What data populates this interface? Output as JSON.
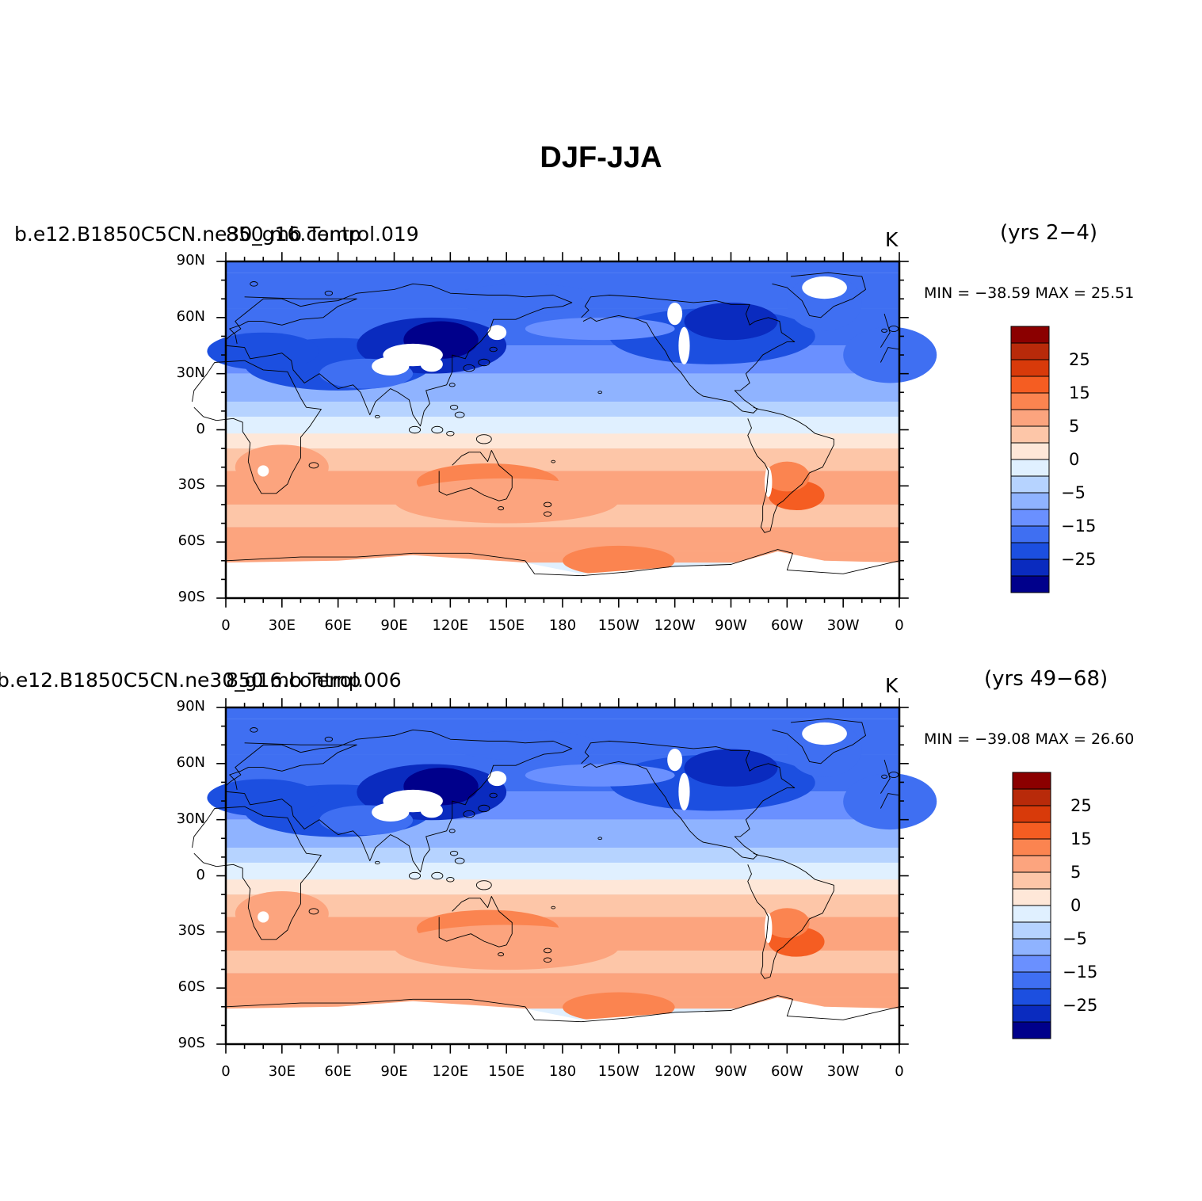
{
  "title": "DJF-JJA",
  "colorbar": {
    "colors": [
      "#8b0000",
      "#b82a0a",
      "#d83a0a",
      "#f55d22",
      "#fb8450",
      "#fca47e",
      "#fdc6a8",
      "#fee7d8",
      "#e0f0ff",
      "#b6d3ff",
      "#8fb3ff",
      "#6a90ff",
      "#3f6ff2",
      "#1c4fe0",
      "#0a2bbf",
      "#00008b"
    ],
    "levels": [
      -35,
      -30,
      -25,
      -20,
      -15,
      -10,
      -5,
      0,
      5,
      10,
      15,
      20,
      25,
      30,
      35
    ],
    "tick_labels": [
      "25",
      "15",
      "5",
      "0",
      "−5",
      "−15",
      "−25"
    ]
  },
  "axes": {
    "lat_labels": [
      "90N",
      "60N",
      "30N",
      "0",
      "30S",
      "60S",
      "90S"
    ],
    "lon_labels": [
      "0",
      "30E",
      "60E",
      "90E",
      "120E",
      "150E",
      "180",
      "150W",
      "120W",
      "90W",
      "60W",
      "30W",
      "0"
    ]
  },
  "panels": [
    {
      "left_label": "b.e12.B1850C5CN.ne30_g16.control.019",
      "center_label": "850 mb Temp",
      "units": "K",
      "years": "(yrs 2−4)",
      "minmax": "MIN = −38.59 MAX =  25.51"
    },
    {
      "left_label": "b.e12.B1850C5CN.ne30_g16.control.006",
      "center_label": "850 mb Temp",
      "units": "K",
      "years": "(yrs 49−68)",
      "minmax": "MIN = −39.08 MAX =  26.60"
    }
  ]
}
